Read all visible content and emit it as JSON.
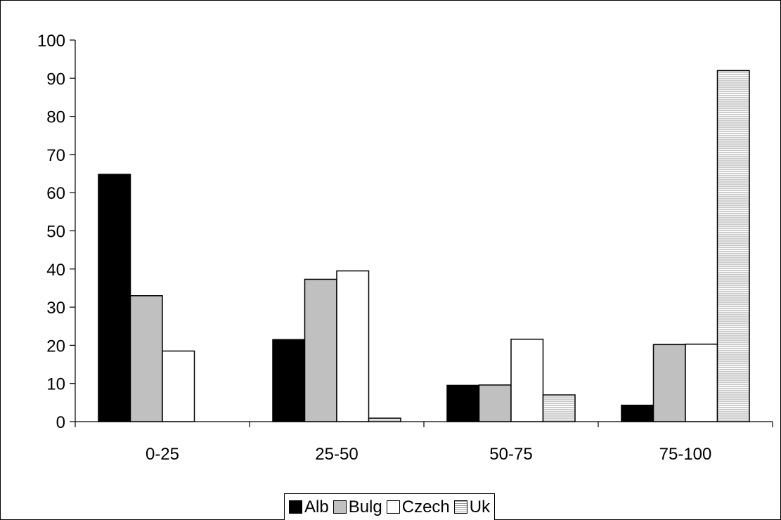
{
  "chart_data": {
    "type": "bar",
    "categories": [
      "0-25",
      "25-50",
      "50-75",
      "75-100"
    ],
    "series": [
      {
        "name": "Alb",
        "values": [
          64.8,
          21.5,
          9.5,
          4.3
        ],
        "color": "#000000",
        "pattern": "solid"
      },
      {
        "name": "Bulg",
        "values": [
          33.0,
          37.3,
          9.6,
          20.2
        ],
        "color": "#c0c0c0",
        "pattern": "solid"
      },
      {
        "name": "Czech",
        "values": [
          18.5,
          39.5,
          21.6,
          20.3
        ],
        "color": "#ffffff",
        "pattern": "solid"
      },
      {
        "name": "Uk",
        "values": [
          0,
          0.9,
          7.0,
          92.0
        ],
        "color": "#e6e6e6",
        "pattern": "horizontal-lines"
      }
    ],
    "yticks": [
      "0",
      "10",
      "20",
      "30",
      "40",
      "50",
      "60",
      "70",
      "80",
      "90",
      "100"
    ],
    "ylim": [
      0,
      100
    ],
    "grid": false,
    "legend": "bottom"
  }
}
